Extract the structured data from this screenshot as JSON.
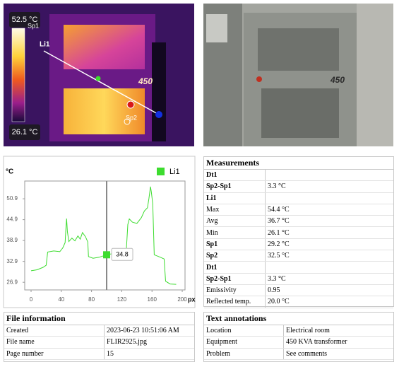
{
  "thermal_image": {
    "max_temp": "52.5 °C",
    "min_temp": "26.1 °C",
    "line_label": "Li1",
    "spot1_label": "Sp1",
    "spot2_label": "Sp2",
    "plate": "450"
  },
  "photo": {
    "plate": "450"
  },
  "chart_data": {
    "type": "line",
    "y_unit": "°C",
    "x_unit": "px",
    "x": [
      0,
      8,
      16,
      20,
      22,
      30,
      38,
      42,
      45,
      46,
      47,
      48,
      50,
      54,
      58,
      62,
      65,
      68,
      72,
      75,
      76,
      82,
      90,
      100,
      110,
      120,
      126,
      128,
      130,
      134,
      140,
      146,
      150,
      154,
      156,
      158,
      159,
      161,
      163,
      170,
      176,
      178,
      184,
      192
    ],
    "series": [
      {
        "name": "Li1",
        "color": "#3ddc2f",
        "values": [
          30.2,
          30.5,
          31.2,
          31.8,
          35.6,
          35.9,
          35.7,
          36.8,
          38.3,
          42,
          45.2,
          41.5,
          38.6,
          39.6,
          38.8,
          40.2,
          39.3,
          41.2,
          40,
          38.5,
          34.3,
          33.8,
          34.1,
          34.8,
          35.2,
          35.6,
          35.9,
          43.5,
          45.1,
          44.2,
          43.8,
          45.5,
          47.4,
          48.3,
          51,
          54.4,
          53,
          49.5,
          34.8,
          34.2,
          33.6,
          27.2,
          26.4,
          26.3
        ]
      }
    ],
    "xlim": [
      -8.4,
      203.7
    ],
    "ylim": [
      24.7,
      56.0
    ],
    "xticks": [
      0,
      40,
      80,
      120,
      160,
      200
    ],
    "yticks": [
      50.9,
      44.9,
      38.9,
      32.9,
      26.9
    ],
    "cursor": {
      "x": 100,
      "value": 34.8
    }
  },
  "measurements": {
    "title": "Measurements",
    "rows": [
      {
        "label": "Dt1",
        "bold": true
      },
      {
        "label": "Sp2-Sp1",
        "value": "3.3 °C",
        "bold": true
      },
      {
        "label": "Li1",
        "bold": true
      },
      {
        "label": "Max",
        "value": "54.4 °C"
      },
      {
        "label": "Avg",
        "value": "36.7 °C"
      },
      {
        "label": "Min",
        "value": "26.1 °C"
      },
      {
        "label": "Sp1",
        "value": "29.2 °C",
        "bold": true
      },
      {
        "label": "Sp2",
        "value": "32.5 °C",
        "bold": true
      },
      {
        "label": "Dt1",
        "bold": true
      },
      {
        "label": "Sp2-Sp1",
        "value": "3.3 °C",
        "bold": true
      },
      {
        "label": "Emissivity",
        "value": "0.95"
      },
      {
        "label": "Reflected temp.",
        "value": "20.0 °C"
      }
    ]
  },
  "file_information": {
    "title": "File information",
    "rows": [
      {
        "label": "Created",
        "value": "2023-06-23 10:51:06 AM"
      },
      {
        "label": "File name",
        "value": "FLIR2925.jpg"
      },
      {
        "label": "Page number",
        "value": "15"
      }
    ]
  },
  "text_annotations": {
    "title": "Text annotations",
    "rows": [
      {
        "label": "Location",
        "value": "Electrical room"
      },
      {
        "label": "Equipment",
        "value": "450 KVA transformer"
      },
      {
        "label": "Problem",
        "value": "See comments"
      }
    ]
  }
}
